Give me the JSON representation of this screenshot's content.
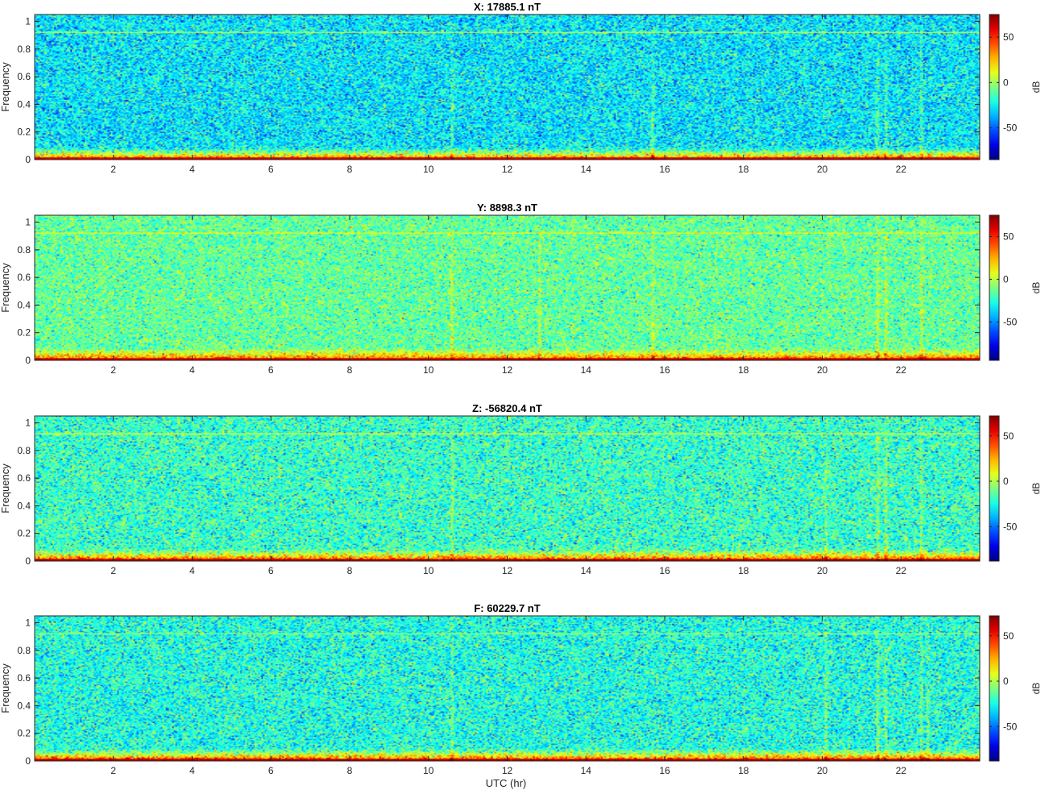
{
  "figure": {
    "xlabel": "UTC (hr)"
  },
  "chart_data": [
    {
      "type": "heatmap",
      "title": "X: 17885.1 nT",
      "ylabel": "Frequency",
      "colorbar_label": "dB",
      "colormap": "jet",
      "x_range": [
        0,
        24
      ],
      "y_range": [
        0,
        1.05
      ],
      "x_ticks": [
        "2",
        "4",
        "6",
        "8",
        "10",
        "12",
        "14",
        "16",
        "18",
        "20",
        "22"
      ],
      "x_tick_values": [
        2,
        4,
        6,
        8,
        10,
        12,
        14,
        16,
        18,
        20,
        22
      ],
      "y_ticks": [
        "0",
        "0.2",
        "0.4",
        "0.6",
        "0.8",
        "1"
      ],
      "y_tick_values": [
        0,
        0.2,
        0.4,
        0.6,
        0.8,
        1
      ],
      "clim": [
        -85,
        75
      ],
      "colorbar_ticks": [
        "50",
        "0",
        "-50"
      ],
      "colorbar_tick_values": [
        50,
        0,
        -50
      ],
      "background_db": -28,
      "noise_db": 14,
      "line_frequency": 0.925,
      "line_db": 5,
      "low_freq_band_db": 45,
      "vertical_streaks_utc": [
        10.6,
        15.7,
        21.4,
        21.6,
        22.5
      ]
    },
    {
      "type": "heatmap",
      "title": "Y: 8898.3 nT",
      "ylabel": "Frequency",
      "colorbar_label": "dB",
      "colormap": "jet",
      "x_range": [
        0,
        24
      ],
      "y_range": [
        0,
        1.05
      ],
      "x_ticks": [
        "2",
        "4",
        "6",
        "8",
        "10",
        "12",
        "14",
        "16",
        "18",
        "20",
        "22"
      ],
      "x_tick_values": [
        2,
        4,
        6,
        8,
        10,
        12,
        14,
        16,
        18,
        20,
        22
      ],
      "y_ticks": [
        "0",
        "0.2",
        "0.4",
        "0.6",
        "0.8",
        "1"
      ],
      "y_tick_values": [
        0,
        0.2,
        0.4,
        0.6,
        0.8,
        1
      ],
      "clim": [
        -95,
        75
      ],
      "colorbar_ticks": [
        "50",
        "0",
        "-50"
      ],
      "colorbar_tick_values": [
        50,
        0,
        -50
      ],
      "background_db": -15,
      "noise_db": 13,
      "line_frequency": 0.925,
      "line_db": 8,
      "low_freq_band_db": 45,
      "vertical_streaks_utc": [
        10.6,
        12.8,
        15.7,
        21.4,
        21.6,
        22.5
      ]
    },
    {
      "type": "heatmap",
      "title": "Z: -56820.4 nT",
      "ylabel": "Frequency",
      "colorbar_label": "dB",
      "colormap": "jet",
      "x_range": [
        0,
        24
      ],
      "y_range": [
        0,
        1.05
      ],
      "x_ticks": [
        "2",
        "4",
        "6",
        "8",
        "10",
        "12",
        "14",
        "16",
        "18",
        "20",
        "22"
      ],
      "x_tick_values": [
        2,
        4,
        6,
        8,
        10,
        12,
        14,
        16,
        18,
        20,
        22
      ],
      "y_ticks": [
        "0",
        "0.2",
        "0.4",
        "0.6",
        "0.8",
        "1"
      ],
      "y_tick_values": [
        0,
        0.2,
        0.4,
        0.6,
        0.8,
        1
      ],
      "clim": [
        -88,
        72
      ],
      "colorbar_ticks": [
        "50",
        "0",
        "-50"
      ],
      "colorbar_tick_values": [
        50,
        0,
        -50
      ],
      "background_db": -20,
      "noise_db": 14,
      "line_frequency": 0.925,
      "line_db": 8,
      "low_freq_band_db": 48,
      "vertical_streaks_utc": [
        10.6,
        20.1,
        21.4,
        21.6,
        22.5
      ]
    },
    {
      "type": "heatmap",
      "title": "F: 60229.7 nT",
      "ylabel": "Frequency",
      "colorbar_label": "dB",
      "colormap": "jet",
      "x_range": [
        0,
        24
      ],
      "y_range": [
        0,
        1.05
      ],
      "x_ticks": [
        "2",
        "4",
        "6",
        "8",
        "10",
        "12",
        "14",
        "16",
        "18",
        "20",
        "22"
      ],
      "x_tick_values": [
        2,
        4,
        6,
        8,
        10,
        12,
        14,
        16,
        18,
        20,
        22
      ],
      "y_ticks": [
        "0",
        "0.2",
        "0.4",
        "0.6",
        "0.8",
        "1"
      ],
      "y_tick_values": [
        0,
        0.2,
        0.4,
        0.6,
        0.8,
        1
      ],
      "clim": [
        -88,
        72
      ],
      "colorbar_ticks": [
        "50",
        "0",
        "-50"
      ],
      "colorbar_tick_values": [
        50,
        0,
        -50
      ],
      "background_db": -24,
      "noise_db": 14,
      "line_frequency": 0.925,
      "line_db": -5,
      "low_freq_band_db": 48,
      "vertical_streaks_utc": [
        10.6,
        20.1,
        21.4,
        21.6,
        22.5,
        22.7
      ]
    }
  ]
}
